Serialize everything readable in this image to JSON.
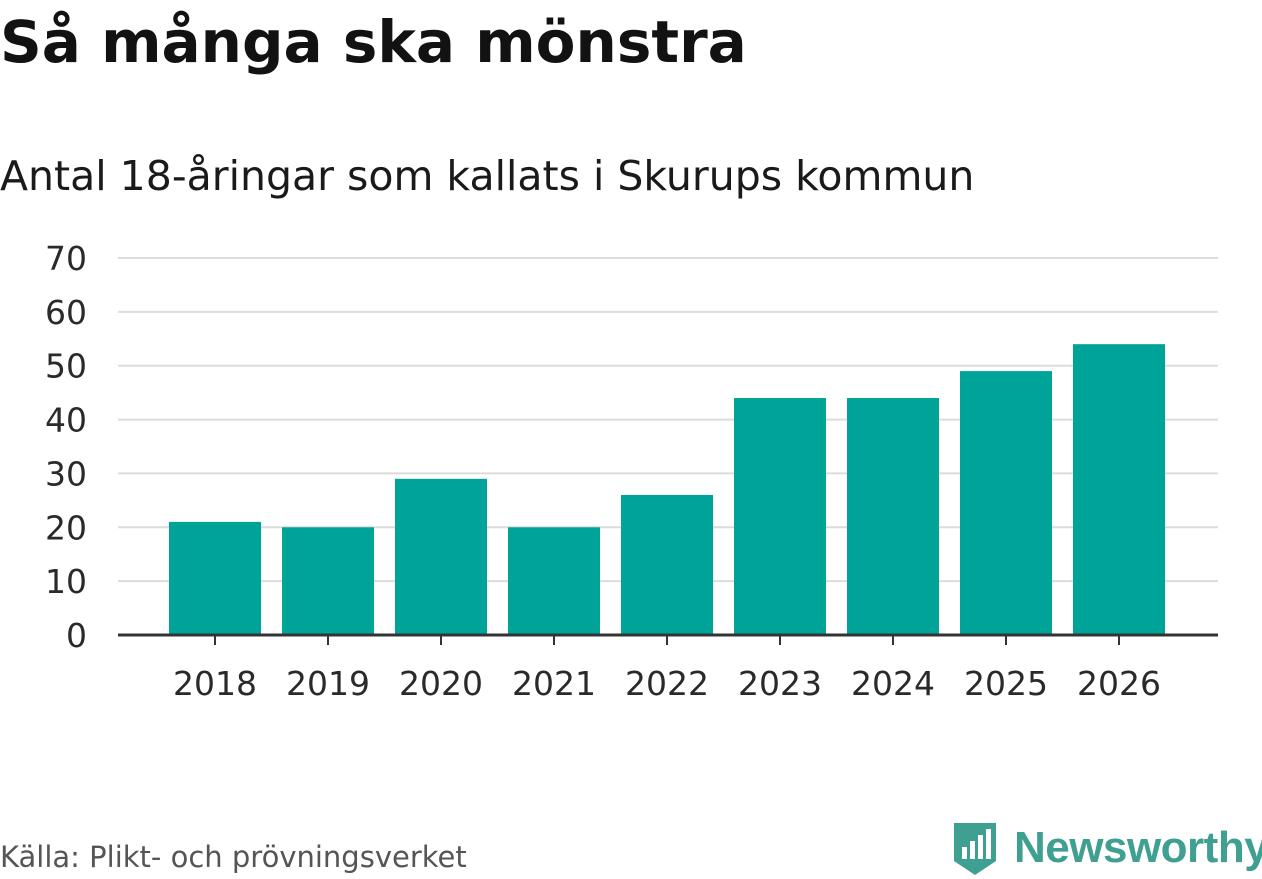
{
  "title": "Så många ska mönstra",
  "source": "Källa: Plikt- och prövningsverket",
  "brand": {
    "name": "Newsworthy"
  },
  "colors": {
    "bar": "#00a398",
    "grid": "#dcdcdc",
    "axis": "#333333",
    "brand": "#3f9f91"
  },
  "chart_data": {
    "type": "bar",
    "title": "Antal 18-åringar som kallats i Skurups kommun",
    "xlabel": "",
    "ylabel": "",
    "categories": [
      "2018",
      "2019",
      "2020",
      "2021",
      "2022",
      "2023",
      "2024",
      "2025",
      "2026"
    ],
    "values": [
      21,
      20,
      29,
      20,
      26,
      44,
      44,
      49,
      54
    ],
    "ylim": [
      0,
      70
    ],
    "yticks": [
      0,
      10,
      20,
      30,
      40,
      50,
      60,
      70
    ],
    "grid": true,
    "legend": "none"
  }
}
